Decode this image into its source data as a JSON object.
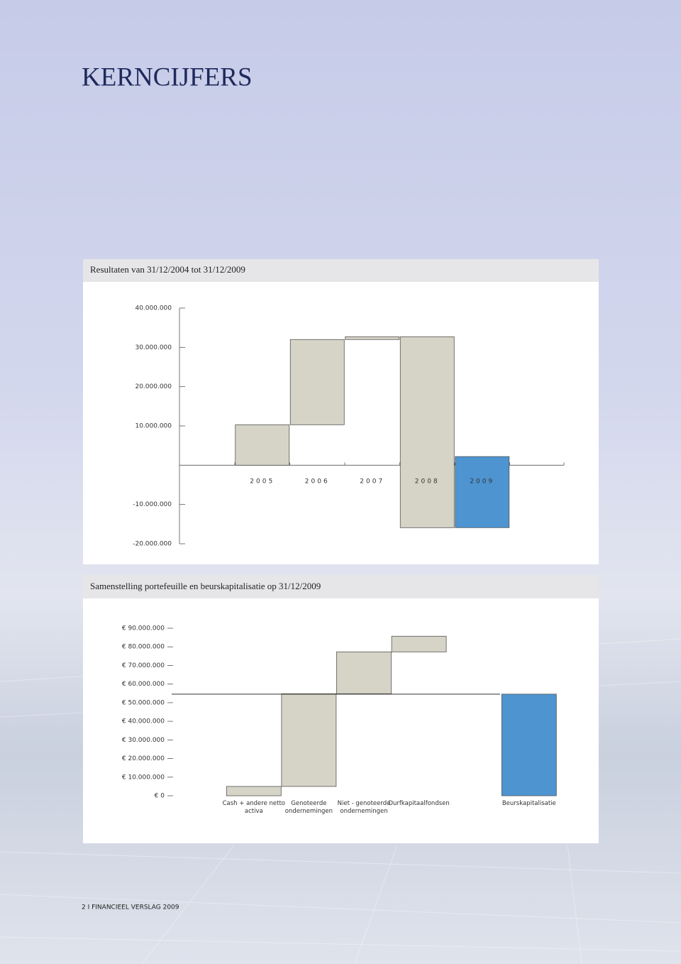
{
  "header": {
    "title": "KERNCIJFERS"
  },
  "chart_data": [
    {
      "type": "waterfall",
      "title": "Resultaten van 31/12/2004 tot 31/12/2009",
      "categories": [
        "2005",
        "2006",
        "2007",
        "2008",
        "2009"
      ],
      "values": [
        10300000,
        21700000,
        700000,
        -48600000,
        18100000
      ],
      "is_total": [
        false,
        false,
        false,
        false,
        false
      ],
      "colors": [
        "#d5d4c6",
        "#d5d4c6",
        "#d5d4c6",
        "#d5d4c6",
        "#4d94d1"
      ],
      "ylim": [
        -20000000,
        40000000
      ],
      "yticks": [
        {
          "value": 40000000,
          "label": "40.000.000"
        },
        {
          "value": 30000000,
          "label": "30.000.000"
        },
        {
          "value": 20000000,
          "label": "20.000.000"
        },
        {
          "value": 10000000,
          "label": "10.000.000"
        },
        {
          "value": -10000000,
          "label": "-10.000.000"
        },
        {
          "value": -20000000,
          "label": "-20.000.000"
        }
      ]
    },
    {
      "type": "waterfall",
      "title": "Samenstelling portefeuille en beurskapitalisatie op 31/12/2009",
      "categories": [
        "Cash + andere netto activa",
        "Genoteerde ondernemingen",
        "Niet - genoteerde ondernemingen",
        "Durfkapitaalfondsen",
        "Beurskapitalisatie"
      ],
      "values": [
        5000000,
        49800000,
        22500000,
        8400000,
        54600000
      ],
      "is_total": [
        false,
        false,
        false,
        false,
        true
      ],
      "colors": [
        "#d5d4c6",
        "#d5d4c6",
        "#d5d4c6",
        "#d5d4c6",
        "#4d94d1"
      ],
      "total_line": true,
      "ylim": [
        0,
        90000000
      ],
      "yticks": [
        {
          "value": 90000000,
          "label": "€ 90.000.000"
        },
        {
          "value": 80000000,
          "label": "€ 80.000.000"
        },
        {
          "value": 70000000,
          "label": "€ 70.000.000"
        },
        {
          "value": 60000000,
          "label": "€ 60.000.000"
        },
        {
          "value": 50000000,
          "label": "€ 50.000.000"
        },
        {
          "value": 40000000,
          "label": "€ 40.000.000"
        },
        {
          "value": 30000000,
          "label": "€ 30.000.000"
        },
        {
          "value": 20000000,
          "label": "€ 20.000.000"
        },
        {
          "value": 10000000,
          "label": "€ 10.000.000"
        },
        {
          "value": 0,
          "label": "€ 0"
        }
      ]
    }
  ],
  "footer": {
    "text": "2 I FINANCIEEL VERSLAG 2009"
  }
}
